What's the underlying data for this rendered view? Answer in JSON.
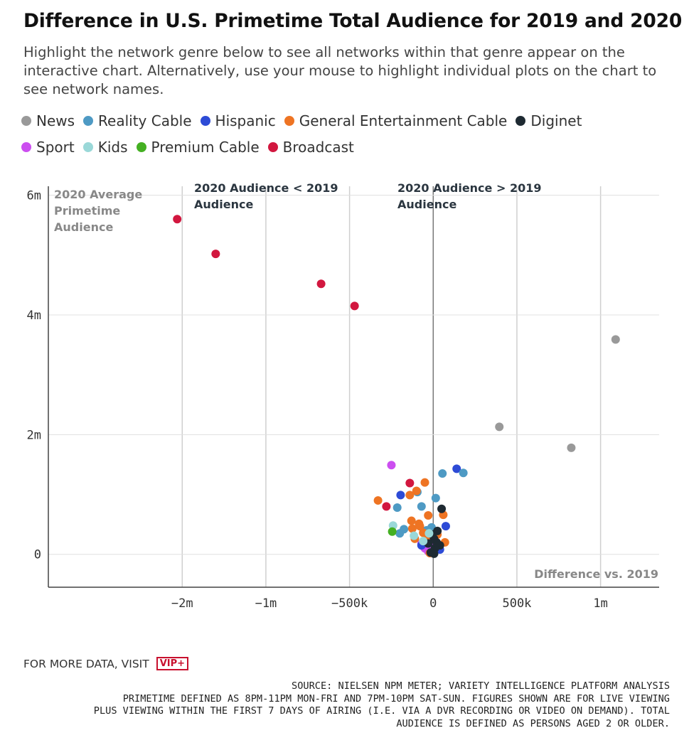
{
  "header": {
    "title": "Difference in U.S. Primetime Total Audience for 2019 and 2020",
    "subtitle": "Highlight the network genre below to see all networks within that genre appear on the interactive chart. Alternatively, use your mouse to highlight individual plots on the chart to see network names."
  },
  "legend": {
    "row1": [
      {
        "label": "News",
        "color": "#999999"
      },
      {
        "label": "Reality Cable",
        "color": "#4e9ac4"
      },
      {
        "label": "Hispanic",
        "color": "#2d4bd6"
      },
      {
        "label": "General Entertainment Cable",
        "color": "#ee7423"
      },
      {
        "label": "Diginet",
        "color": "#1e2a32"
      }
    ],
    "row2": [
      {
        "label": "Sport",
        "color": "#cc4ef0"
      },
      {
        "label": "Kids",
        "color": "#9ad8d8"
      },
      {
        "label": "Premium Cable",
        "color": "#44b022"
      },
      {
        "label": "Broadcast",
        "color": "#d2173f"
      }
    ]
  },
  "chart_data": {
    "type": "scatter",
    "xlim": [
      -2300000,
      1350000
    ],
    "ylim": [
      -550000,
      6150000
    ],
    "xticks": [
      {
        "value": -1500000,
        "label": "−2m"
      },
      {
        "value": -1000000,
        "label": "−1m"
      },
      {
        "value": -500000,
        "label": "−500k"
      },
      {
        "value": 0,
        "label": "0"
      },
      {
        "value": 500000,
        "label": "500k"
      },
      {
        "value": 1000000,
        "label": "1m"
      }
    ],
    "yticks": [
      {
        "value": 0,
        "label": "0"
      },
      {
        "value": 2000000,
        "label": "2m"
      },
      {
        "value": 4000000,
        "label": "4m"
      },
      {
        "value": 6000000,
        "label": "6m"
      }
    ],
    "annotations": {
      "y_title": "2020 Average Primetime Audience",
      "left_region": "2020 Audience < 2019 Audience",
      "right_region": "2020 Audience > 2019 Audience",
      "x_title": "Difference vs. 2019"
    },
    "series": [
      {
        "name": "Broadcast",
        "color": "#d2173f",
        "points": [
          [
            -1530000,
            5600000
          ],
          [
            -1300000,
            5020000
          ],
          [
            -670000,
            4520000
          ],
          [
            -470000,
            4150000
          ],
          [
            -140000,
            1190000
          ],
          [
            -280000,
            800000
          ]
        ]
      },
      {
        "name": "News",
        "color": "#999999",
        "points": [
          [
            1090000,
            3590000
          ],
          [
            395000,
            2130000
          ],
          [
            825000,
            1780000
          ]
        ]
      },
      {
        "name": "Sport",
        "color": "#cc4ef0",
        "points": [
          [
            -250000,
            1490000
          ],
          [
            -70000,
            180000
          ],
          [
            -50000,
            100000
          ],
          [
            -30000,
            50000
          ],
          [
            -15000,
            130000
          ]
        ]
      },
      {
        "name": "Hispanic",
        "color": "#2d4bd6",
        "points": [
          [
            140000,
            1430000
          ],
          [
            -195000,
            990000
          ],
          [
            75000,
            470000
          ],
          [
            -70000,
            150000
          ],
          [
            40000,
            80000
          ]
        ]
      },
      {
        "name": "Reality Cable",
        "color": "#4e9ac4",
        "points": [
          [
            55000,
            1350000
          ],
          [
            180000,
            1360000
          ],
          [
            -95000,
            1040000
          ],
          [
            15000,
            940000
          ],
          [
            -215000,
            780000
          ],
          [
            -70000,
            800000
          ],
          [
            -175000,
            420000
          ],
          [
            -200000,
            350000
          ],
          [
            -40000,
            400000
          ],
          [
            -10000,
            450000
          ]
        ]
      },
      {
        "name": "General Entertainment Cable",
        "color": "#ee7423",
        "points": [
          [
            -50000,
            1200000
          ],
          [
            -100000,
            1060000
          ],
          [
            -140000,
            990000
          ],
          [
            -330000,
            900000
          ],
          [
            -30000,
            650000
          ],
          [
            60000,
            660000
          ],
          [
            -130000,
            560000
          ],
          [
            -85000,
            510000
          ],
          [
            -125000,
            430000
          ],
          [
            -60000,
            360000
          ],
          [
            -110000,
            260000
          ],
          [
            70000,
            200000
          ],
          [
            -40000,
            250000
          ],
          [
            -20000,
            20000
          ],
          [
            25000,
            330000
          ],
          [
            -80000,
            470000
          ]
        ]
      },
      {
        "name": "Diginet",
        "color": "#1e2a32",
        "points": [
          [
            50000,
            760000
          ],
          [
            25000,
            390000
          ],
          [
            5000,
            260000
          ],
          [
            -30000,
            180000
          ],
          [
            40000,
            150000
          ],
          [
            10000,
            100000
          ],
          [
            -15000,
            30000
          ],
          [
            5000,
            10000
          ],
          [
            20000,
            200000
          ],
          [
            -5000,
            330000
          ]
        ]
      },
      {
        "name": "Kids",
        "color": "#9ad8d8",
        "points": [
          [
            -240000,
            480000
          ],
          [
            -115000,
            310000
          ],
          [
            -25000,
            350000
          ],
          [
            -60000,
            220000
          ]
        ]
      },
      {
        "name": "Premium Cable",
        "color": "#44b022",
        "points": [
          [
            -245000,
            380000
          ]
        ]
      }
    ]
  },
  "footer": {
    "visit_label": "FOR MORE DATA, VISIT",
    "badge": "VIP+",
    "source_lines": [
      "SOURCE: NIELSEN NPM METER; VARIETY INTELLIGENCE PLATFORM ANALYSIS",
      "PRIMETIME DEFINED AS 8PM-11PM MON-FRI AND 7PM-10PM SAT-SUN. FIGURES SHOWN ARE FOR LIVE VIEWING",
      "PLUS VIEWING WITHIN THE FIRST 7 DAYS OF AIRING (I.E. VIA A DVR RECORDING OR VIDEO ON DEMAND). TOTAL",
      "AUDIENCE IS DEFINED AS PERSONS AGED 2 OR OLDER."
    ]
  }
}
